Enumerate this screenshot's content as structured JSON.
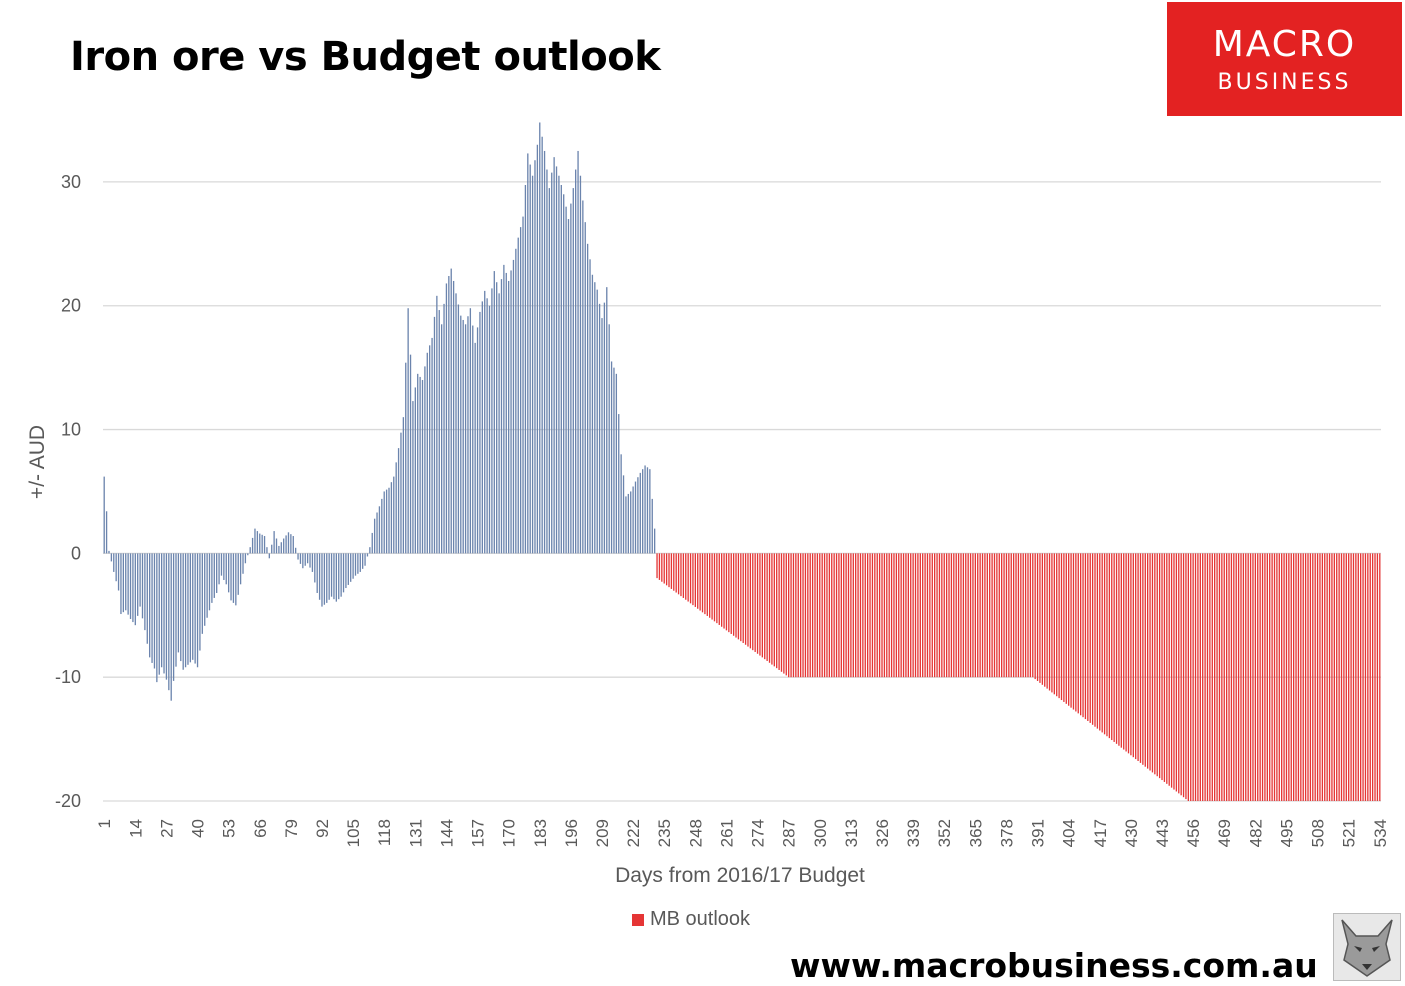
{
  "title": "Iron ore vs Budget outlook",
  "logo": {
    "line1": "MACRO",
    "line2": "BUSINESS",
    "color": "#e32222"
  },
  "footer_url": "www.macrobusiness.com.au",
  "legend_label": "MB outlook",
  "colors": {
    "actual": "#6b84ad",
    "outlook": "#e53535",
    "grid": "#d9d9d9"
  },
  "chart_data": {
    "type": "bar",
    "title": "Iron ore vs Budget outlook",
    "xlabel": "Days from 2016/17 Budget",
    "ylabel": "+/- AUD",
    "ylim": [
      -20,
      35
    ],
    "yticks": [
      -20,
      -10,
      0,
      10,
      20,
      30
    ],
    "xlim": [
      1,
      534
    ],
    "xticks": [
      1,
      14,
      27,
      40,
      53,
      66,
      79,
      92,
      105,
      118,
      131,
      144,
      157,
      170,
      183,
      196,
      209,
      222,
      235,
      248,
      261,
      274,
      287,
      300,
      313,
      326,
      339,
      352,
      365,
      378,
      391,
      404,
      417,
      430,
      443,
      456,
      469,
      482,
      495,
      508,
      521,
      534
    ],
    "grid": "horizontal",
    "legend_position": "bottom",
    "series": [
      {
        "values": [
          [
            1,
            6.2
          ],
          [
            2,
            3.4
          ],
          [
            3,
            0.2
          ],
          [
            5,
            -1.5
          ],
          [
            7,
            -3.0
          ],
          [
            8,
            -4.9
          ],
          [
            10,
            -4.6
          ],
          [
            12,
            -5.3
          ],
          [
            14,
            -5.8
          ],
          [
            16,
            -4.3
          ],
          [
            18,
            -6.2
          ],
          [
            20,
            -8.4
          ],
          [
            22,
            -9.3
          ],
          [
            23,
            -10.4
          ],
          [
            25,
            -9.2
          ],
          [
            27,
            -10.2
          ],
          [
            29,
            -11.9
          ],
          [
            30,
            -10.3
          ],
          [
            32,
            -8.0
          ],
          [
            34,
            -9.4
          ],
          [
            36,
            -9.0
          ],
          [
            38,
            -8.6
          ],
          [
            40,
            -9.2
          ],
          [
            42,
            -6.5
          ],
          [
            44,
            -5.2
          ],
          [
            46,
            -4.0
          ],
          [
            48,
            -3.2
          ],
          [
            50,
            -1.8
          ],
          [
            52,
            -2.5
          ],
          [
            54,
            -3.8
          ],
          [
            56,
            -4.2
          ],
          [
            58,
            -2.5
          ],
          [
            60,
            -0.8
          ],
          [
            62,
            0.5
          ],
          [
            64,
            2.0
          ],
          [
            66,
            1.6
          ],
          [
            68,
            1.4
          ],
          [
            70,
            -0.4
          ],
          [
            72,
            1.8
          ],
          [
            74,
            0.6
          ],
          [
            76,
            1.2
          ],
          [
            78,
            1.7
          ],
          [
            80,
            1.4
          ],
          [
            82,
            -0.5
          ],
          [
            84,
            -1.2
          ],
          [
            86,
            -0.8
          ],
          [
            88,
            -1.5
          ],
          [
            90,
            -3.2
          ],
          [
            92,
            -4.3
          ],
          [
            94,
            -4.0
          ],
          [
            96,
            -3.5
          ],
          [
            98,
            -3.9
          ],
          [
            100,
            -3.5
          ],
          [
            102,
            -2.8
          ],
          [
            104,
            -2.3
          ],
          [
            106,
            -1.8
          ],
          [
            108,
            -1.5
          ],
          [
            110,
            -1.0
          ],
          [
            112,
            0.5
          ],
          [
            114,
            2.8
          ],
          [
            116,
            3.8
          ],
          [
            118,
            5.0
          ],
          [
            120,
            5.3
          ],
          [
            122,
            6.2
          ],
          [
            124,
            8.5
          ],
          [
            126,
            11.0
          ],
          [
            128,
            19.8
          ],
          [
            130,
            12.3
          ],
          [
            132,
            14.5
          ],
          [
            134,
            14.0
          ],
          [
            136,
            16.2
          ],
          [
            138,
            17.4
          ],
          [
            140,
            20.8
          ],
          [
            142,
            18.5
          ],
          [
            144,
            21.8
          ],
          [
            146,
            23.0
          ],
          [
            148,
            21.0
          ],
          [
            150,
            19.2
          ],
          [
            152,
            18.5
          ],
          [
            154,
            19.8
          ],
          [
            156,
            17.0
          ],
          [
            158,
            19.5
          ],
          [
            160,
            21.2
          ],
          [
            162,
            20.0
          ],
          [
            164,
            22.8
          ],
          [
            166,
            21.0
          ],
          [
            168,
            23.3
          ],
          [
            170,
            22.0
          ],
          [
            172,
            23.7
          ],
          [
            174,
            25.5
          ],
          [
            176,
            27.2
          ],
          [
            178,
            32.3
          ],
          [
            180,
            30.5
          ],
          [
            182,
            33.0
          ],
          [
            183,
            34.8
          ],
          [
            185,
            32.5
          ],
          [
            187,
            29.5
          ],
          [
            189,
            32.0
          ],
          [
            191,
            30.5
          ],
          [
            193,
            29.0
          ],
          [
            195,
            27.0
          ],
          [
            197,
            29.5
          ],
          [
            199,
            32.5
          ],
          [
            201,
            28.5
          ],
          [
            203,
            25.0
          ],
          [
            205,
            22.5
          ],
          [
            207,
            21.3
          ],
          [
            209,
            19.0
          ],
          [
            211,
            21.5
          ],
          [
            213,
            15.5
          ],
          [
            215,
            14.5
          ],
          [
            217,
            8.0
          ],
          [
            219,
            4.6
          ],
          [
            221,
            5.0
          ],
          [
            223,
            5.8
          ],
          [
            225,
            6.5
          ],
          [
            227,
            7.1
          ],
          [
            229,
            6.8
          ],
          [
            231,
            2.0
          ]
        ]
      },
      {
        "name": "MB outlook",
        "values": [
          [
            232,
            -2.0
          ],
          [
            287,
            -10.0
          ],
          [
            389,
            -10.0
          ],
          [
            454,
            -20.0
          ],
          [
            534,
            -20.0
          ]
        ]
      }
    ]
  }
}
